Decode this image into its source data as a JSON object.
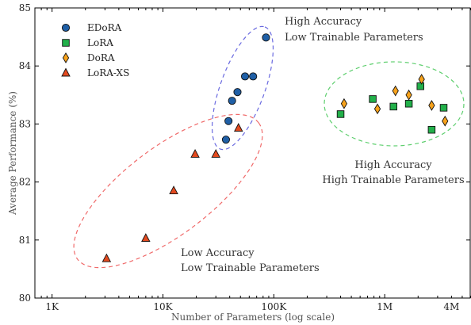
{
  "chart_data": {
    "type": "scatter",
    "xscale": "log",
    "xlim": [
      700,
      6000000
    ],
    "ylim": [
      80,
      85
    ],
    "xlabel": "Number of Parameters (log scale)",
    "ylabel": "Average Performance (%)",
    "x_ticks": [
      {
        "value": 1000,
        "label": "1K"
      },
      {
        "value": 10000,
        "label": "10K"
      },
      {
        "value": 100000,
        "label": "100K"
      },
      {
        "value": 1000000,
        "label": "1M"
      },
      {
        "value": 4000000,
        "label": "4M"
      }
    ],
    "y_ticks": [
      80,
      81,
      82,
      83,
      84,
      85
    ],
    "grid": false,
    "legend_position": "top-left",
    "series": [
      {
        "name": "EDoRA",
        "marker": "circle",
        "color": "#1f5fa6",
        "points": [
          [
            37000,
            82.73
          ],
          [
            39000,
            83.05
          ],
          [
            42000,
            83.4
          ],
          [
            47000,
            83.55
          ],
          [
            55000,
            83.82
          ],
          [
            65000,
            83.82
          ],
          [
            85000,
            84.49
          ]
        ]
      },
      {
        "name": "LoRA",
        "marker": "square",
        "color": "#22b04a",
        "points": [
          [
            400000,
            83.17
          ],
          [
            780000,
            83.43
          ],
          [
            1200000,
            83.3
          ],
          [
            1650000,
            83.35
          ],
          [
            2100000,
            83.65
          ],
          [
            2650000,
            82.9
          ],
          [
            3400000,
            83.28
          ]
        ]
      },
      {
        "name": "DoRA",
        "marker": "diamond",
        "color": "#f7a21b",
        "points": [
          [
            430000,
            83.35
          ],
          [
            860000,
            83.26
          ],
          [
            1250000,
            83.57
          ],
          [
            1650000,
            83.5
          ],
          [
            2150000,
            83.77
          ],
          [
            2650000,
            83.32
          ],
          [
            3500000,
            83.05
          ]
        ]
      },
      {
        "name": "LoRA-XS",
        "marker": "triangle",
        "color": "#e34a1f",
        "points": [
          [
            3100,
            80.68
          ],
          [
            7000,
            81.03
          ],
          [
            12500,
            81.85
          ],
          [
            19500,
            82.48
          ],
          [
            30000,
            82.48
          ],
          [
            48000,
            82.93
          ]
        ]
      }
    ],
    "annotations": [
      {
        "line1": "High Accuracy",
        "line2": "Low Trainable Parameters"
      },
      {
        "line1": "High Accuracy",
        "line2": "High Trainable Parameters"
      },
      {
        "line1": "Low Accuracy",
        "line2": "Low Trainable Parameters"
      }
    ],
    "ellipse_colors": [
      "#6a6ae0",
      "#5fcf6f",
      "#f06a6a"
    ],
    "axis_color": "#000000"
  }
}
